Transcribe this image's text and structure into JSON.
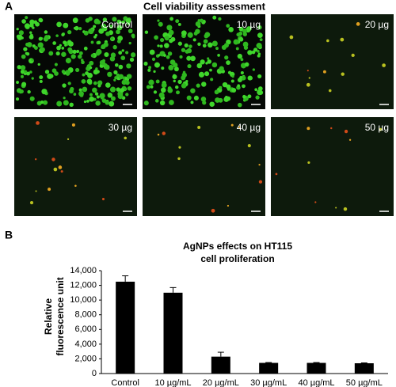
{
  "panel_a": {
    "label": "A",
    "title": "Cell viability assessment",
    "images": [
      {
        "label": "Control"
      },
      {
        "label": "10 µg"
      },
      {
        "label": "20 µg"
      },
      {
        "label": "30 µg"
      },
      {
        "label": "40 µg"
      },
      {
        "label": "50 µg"
      }
    ]
  },
  "chart_data": {
    "type": "bar",
    "panel_label": "B",
    "title": [
      "AgNPs effects on HT115",
      "cell proliferation"
    ],
    "ylabel": [
      "Relative",
      "fluorescence unit"
    ],
    "categories": [
      "Control",
      "10 µg/mL",
      "20 µg/mL",
      "30 µg/mL",
      "40 µg/mL",
      "50 µg/mL"
    ],
    "values": [
      12500,
      11000,
      2300,
      1450,
      1450,
      1400
    ],
    "errors": [
      800,
      700,
      600,
      50,
      50,
      50
    ],
    "color": "#000000",
    "ylim": [
      0,
      14000
    ],
    "yticks": [
      0,
      {
        "value": 2000,
        "label": "2,000"
      },
      {
        "value": 4000,
        "label": "4,000"
      },
      {
        "value": 6000,
        "label": "6,000"
      },
      {
        "value": 8000,
        "label": "8,000"
      },
      {
        "value": 10000,
        "label": "10,000"
      },
      {
        "value": 12000,
        "label": "12,000"
      },
      {
        "value": 14000,
        "label": "14,000"
      }
    ]
  }
}
